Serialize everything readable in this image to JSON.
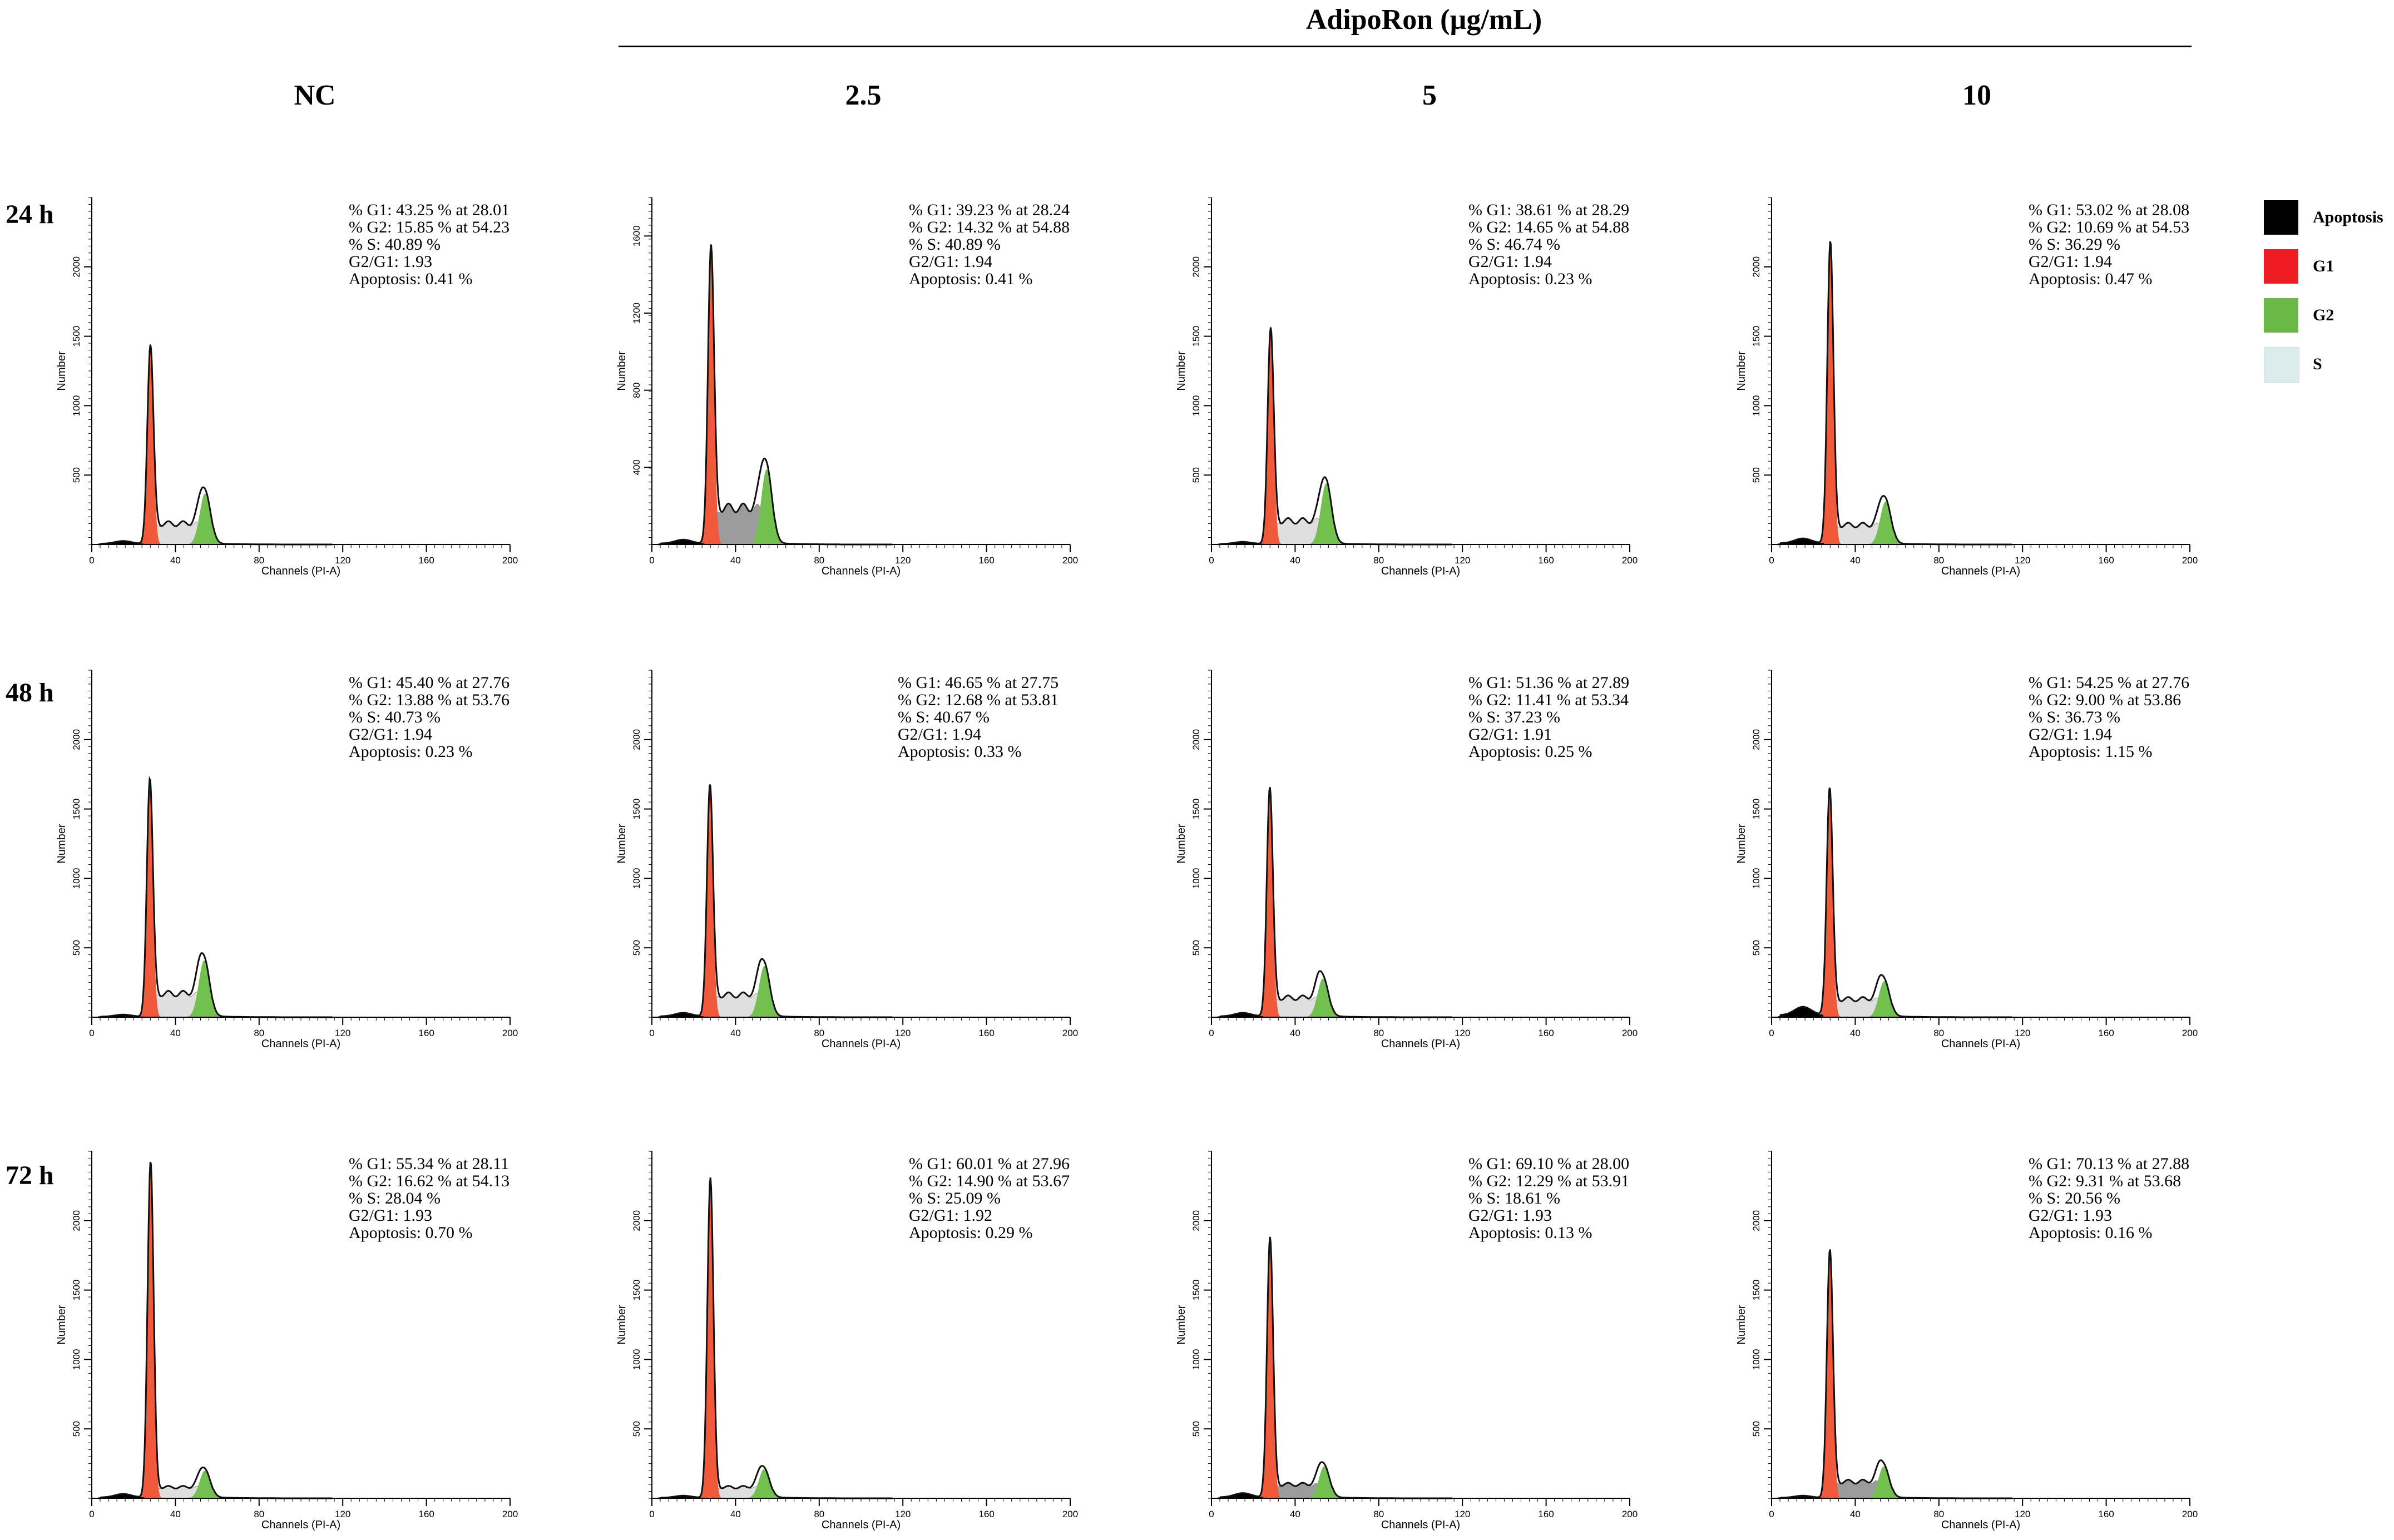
{
  "title": "AdipoRon (µg/mL)",
  "columns": [
    "NC",
    "2.5",
    "5",
    "10"
  ],
  "rows": [
    "24 h",
    "48 h",
    "72 h"
  ],
  "legend": [
    {
      "label": "Apoptosis",
      "color": "#000000"
    },
    {
      "label": "G1",
      "color": "#ee1c25"
    },
    {
      "label": "G2",
      "color": "#6ab947"
    },
    {
      "label": "S",
      "color": "#dcebeb"
    }
  ],
  "colors": {
    "g1": "#f05a3a",
    "g2": "#72c04e",
    "s": "#d9d9d9",
    "s_dark": "#8a8a8a",
    "apoptosis": "#000000"
  },
  "chart_data": {
    "type": "histogram-grid",
    "xlabel": "Channels (PI-A)",
    "ylabel": "Number",
    "xlim": [
      0,
      200
    ],
    "xticks": [
      "0",
      "40",
      "80",
      "120",
      "160",
      "200"
    ],
    "panels": [
      {
        "row": "24 h",
        "column": "NC",
        "g1_pct": 43.25,
        "g1_at": 28.01,
        "g2_pct": 15.85,
        "g2_at": 54.23,
        "s_pct": 40.89,
        "ratio": 1.93,
        "apoptosis": 0.41,
        "ymax": 2500,
        "yticks": [
          "500",
          "1000",
          "1500",
          "2000"
        ],
        "g1_peak": 1420,
        "g2_peak": 370,
        "s_level": 150,
        "apop_level": 20,
        "s_dark": false,
        "stats": [
          "% G1: 43.25 % at 28.01",
          "% G2: 15.85 % at 54.23",
          "% S: 40.89 %",
          "G2/G1: 1.93",
          "Apoptosis: 0.41 %"
        ]
      },
      {
        "row": "24 h",
        "column": "2.5",
        "g1_pct": 39.23,
        "g1_at": 28.24,
        "g2_pct": 14.32,
        "g2_at": 54.88,
        "s_pct": 40.89,
        "ratio": 1.94,
        "apoptosis": 0.41,
        "ymax": 1800,
        "yticks": [
          "400",
          "800",
          "1200",
          "1600"
        ],
        "g1_peak": 1530,
        "g2_peak": 390,
        "s_level": 190,
        "apop_level": 20,
        "s_dark": true,
        "stats": [
          "% G1: 39.23 % at 28.24",
          "% G2: 14.32 % at 54.88",
          "% S: 40.89 %",
          "G2/G1: 1.94",
          "Apoptosis: 0.41 %"
        ]
      },
      {
        "row": "24 h",
        "column": "5",
        "g1_pct": 38.61,
        "g1_at": 28.29,
        "g2_pct": 14.65,
        "g2_at": 54.88,
        "s_pct": 46.74,
        "ratio": 1.94,
        "apoptosis": 0.23,
        "ymax": 2500,
        "yticks": [
          "500",
          "1000",
          "1500",
          "2000"
        ],
        "g1_peak": 1540,
        "g2_peak": 440,
        "s_level": 170,
        "apop_level": 15,
        "s_dark": false,
        "stats": [
          "% G1: 38.61 % at 28.29",
          "% G2: 14.65 % at 54.88",
          "% S: 46.74 %",
          "G2/G1: 1.94",
          "Apoptosis: 0.23 %"
        ]
      },
      {
        "row": "24 h",
        "column": "10",
        "g1_pct": 53.02,
        "g1_at": 28.08,
        "g2_pct": 10.69,
        "g2_at": 54.53,
        "s_pct": 36.29,
        "ratio": 1.94,
        "apoptosis": 0.47,
        "ymax": 2500,
        "yticks": [
          "500",
          "1000",
          "1500",
          "2000"
        ],
        "g1_peak": 2170,
        "g2_peak": 310,
        "s_level": 140,
        "apop_level": 35,
        "s_dark": false,
        "stats": [
          "% G1: 53.02 % at 28.08",
          "% G2: 10.69 % at 54.53",
          "% S: 36.29 %",
          "G2/G1: 1.94",
          "Apoptosis: 0.47 %"
        ]
      },
      {
        "row": "48 h",
        "column": "NC",
        "g1_pct": 45.4,
        "g1_at": 27.76,
        "g2_pct": 13.88,
        "g2_at": 53.76,
        "s_pct": 40.73,
        "ratio": 1.94,
        "apoptosis": 0.23,
        "ymax": 2500,
        "yticks": [
          "500",
          "1000",
          "1500",
          "2000"
        ],
        "g1_peak": 1700,
        "g2_peak": 410,
        "s_level": 170,
        "apop_level": 15,
        "s_dark": false,
        "stats": [
          "% G1: 45.40 % at 27.76",
          "% G2: 13.88 % at 53.76",
          "% S: 40.73 %",
          "G2/G1: 1.94",
          "Apoptosis: 0.23 %"
        ]
      },
      {
        "row": "48 h",
        "column": "2.5",
        "g1_pct": 46.65,
        "g1_at": 27.75,
        "g2_pct": 12.68,
        "g2_at": 53.81,
        "s_pct": 40.67,
        "ratio": 1.94,
        "apoptosis": 0.33,
        "ymax": 2500,
        "yticks": [
          "500",
          "1000",
          "1500",
          "2000"
        ],
        "g1_peak": 1660,
        "g2_peak": 370,
        "s_level": 160,
        "apop_level": 25,
        "s_dark": false,
        "stats": [
          "% G1: 46.65 % at 27.75",
          "% G2: 12.68 % at 53.81",
          "% S: 40.67 %",
          "G2/G1: 1.94",
          "Apoptosis: 0.33 %"
        ]
      },
      {
        "row": "48 h",
        "column": "5",
        "g1_pct": 51.36,
        "g1_at": 27.89,
        "g2_pct": 11.41,
        "g2_at": 53.34,
        "s_pct": 37.23,
        "ratio": 1.91,
        "apoptosis": 0.25,
        "ymax": 2500,
        "yticks": [
          "500",
          "1000",
          "1500",
          "2000"
        ],
        "g1_peak": 1640,
        "g2_peak": 280,
        "s_level": 140,
        "apop_level": 25,
        "s_dark": false,
        "stats": [
          "% G1: 51.36 % at 27.89",
          "% G2: 11.41 % at 53.34",
          "% S: 37.23 %",
          "G2/G1: 1.91",
          "Apoptosis: 0.25 %"
        ]
      },
      {
        "row": "48 h",
        "column": "10",
        "g1_pct": 54.25,
        "g1_at": 27.76,
        "g2_pct": 9.0,
        "g2_at": 53.86,
        "s_pct": 36.73,
        "ratio": 1.94,
        "apoptosis": 1.15,
        "ymax": 2500,
        "yticks": [
          "500",
          "1000",
          "1500",
          "2000"
        ],
        "g1_peak": 1640,
        "g2_peak": 260,
        "s_level": 130,
        "apop_level": 60,
        "s_dark": false,
        "stats": [
          "% G1: 54.25 % at 27.76",
          "% G2: 9.00 % at 53.86",
          "% S: 36.73 %",
          "G2/G1: 1.94",
          "Apoptosis: 1.15 %"
        ]
      },
      {
        "row": "72 h",
        "column": "NC",
        "g1_pct": 55.34,
        "g1_at": 28.11,
        "g2_pct": 16.62,
        "g2_at": 54.13,
        "s_pct": 28.04,
        "ratio": 1.93,
        "apoptosis": 0.7,
        "ymax": 2500,
        "yticks": [
          "500",
          "1000",
          "1500",
          "2000"
        ],
        "g1_peak": 2420,
        "g2_peak": 200,
        "s_level": 80,
        "apop_level": 25,
        "s_dark": false,
        "stats": [
          "% G1: 55.34 % at 28.11",
          "% G2: 16.62 % at 54.13",
          "% S: 28.04 %",
          "G2/G1: 1.93",
          "Apoptosis: 0.70 %"
        ]
      },
      {
        "row": "72 h",
        "column": "2.5",
        "g1_pct": 60.01,
        "g1_at": 27.96,
        "g2_pct": 14.9,
        "g2_at": 53.67,
        "s_pct": 25.09,
        "ratio": 1.92,
        "apoptosis": 0.29,
        "ymax": 2500,
        "yticks": [
          "500",
          "1000",
          "1500",
          "2000"
        ],
        "g1_peak": 2300,
        "g2_peak": 210,
        "s_level": 80,
        "apop_level": 15,
        "s_dark": false,
        "stats": [
          "% G1: 60.01 % at 27.96",
          "% G2: 14.90 % at 53.67",
          "% S: 25.09 %",
          "G2/G1: 1.92",
          "Apoptosis: 0.29 %"
        ]
      },
      {
        "row": "72 h",
        "column": "5",
        "g1_pct": 69.1,
        "g1_at": 28.0,
        "g2_pct": 12.29,
        "g2_at": 53.91,
        "s_pct": 18.61,
        "ratio": 1.93,
        "apoptosis": 0.13,
        "ymax": 2500,
        "yticks": [
          "500",
          "1000",
          "1500",
          "2000"
        ],
        "g1_peak": 1870,
        "g2_peak": 230,
        "s_level": 100,
        "apop_level": 30,
        "s_dark": true,
        "stats": [
          "% G1: 69.10 % at 28.00",
          "% G2: 12.29 % at 53.91",
          "% S: 18.61 %",
          "G2/G1: 1.93",
          "Apoptosis: 0.13 %"
        ]
      },
      {
        "row": "72 h",
        "column": "10",
        "g1_pct": 70.13,
        "g1_at": 27.88,
        "g2_pct": 9.31,
        "g2_at": 53.68,
        "s_pct": 20.56,
        "ratio": 1.93,
        "apoptosis": 0.16,
        "ymax": 2500,
        "yticks": [
          "500",
          "1000",
          "1500",
          "2000"
        ],
        "g1_peak": 1780,
        "g2_peak": 230,
        "s_level": 120,
        "apop_level": 15,
        "s_dark": true,
        "stats": [
          "% G1: 70.13 % at 27.88",
          "% G2:  9.31  % at 53.68",
          "% S: 20.56 %",
          "G2/G1: 1.93",
          "Apoptosis: 0.16 %"
        ]
      }
    ]
  }
}
